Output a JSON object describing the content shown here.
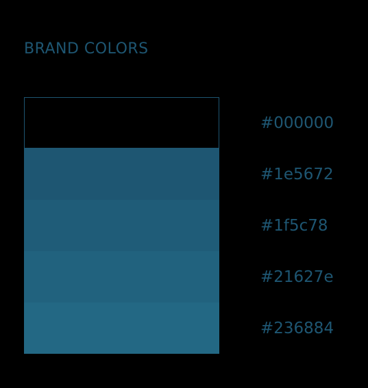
{
  "title": "BRAND COLORS",
  "colors": [
    {
      "hex": "#000000",
      "label": "#000000",
      "outlined": true
    },
    {
      "hex": "#1e5672",
      "label": "#1e5672",
      "outlined": false
    },
    {
      "hex": "#1f5c78",
      "label": "#1f5c78",
      "outlined": false
    },
    {
      "hex": "#21627e",
      "label": "#21627e",
      "outlined": false
    },
    {
      "hex": "#236884",
      "label": "#236884",
      "outlined": false
    }
  ],
  "text_color": "#1e5672",
  "background": "#000000"
}
